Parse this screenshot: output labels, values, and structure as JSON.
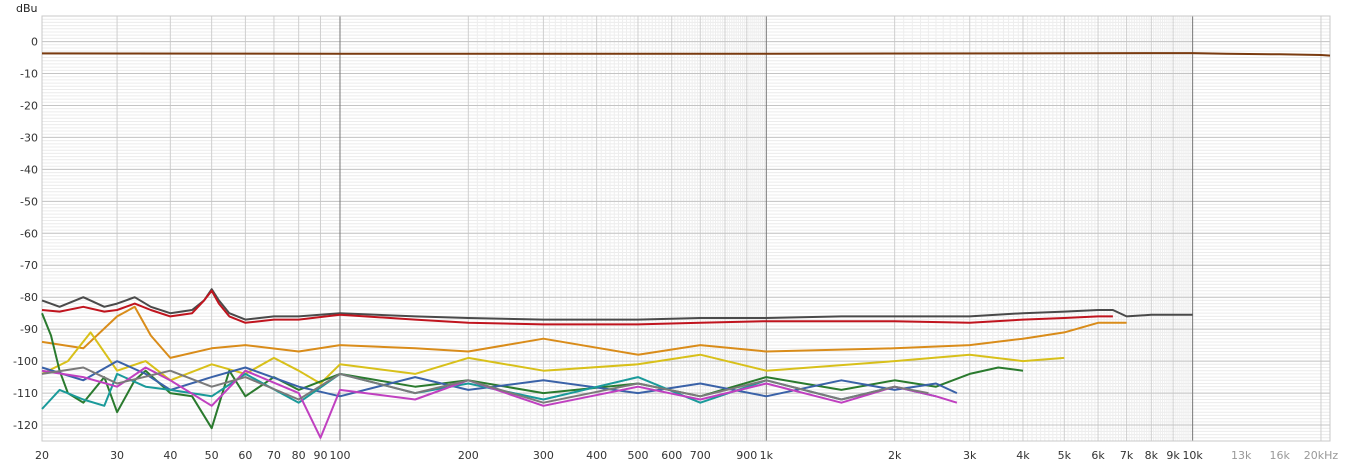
{
  "chart_data": {
    "type": "line",
    "title": "",
    "xlabel": "",
    "ylabel": "dBu",
    "x_scale": "log",
    "xlim": [
      20,
      21000
    ],
    "ylim": [
      -125,
      8
    ],
    "grid": true,
    "legend": "none",
    "y_ticks": [
      {
        "value": 0,
        "label": "0"
      },
      {
        "value": -10,
        "label": "-10"
      },
      {
        "value": -20,
        "label": "-20"
      },
      {
        "value": -30,
        "label": "-30"
      },
      {
        "value": -40,
        "label": "-40"
      },
      {
        "value": -50,
        "label": "-50"
      },
      {
        "value": -60,
        "label": "-60"
      },
      {
        "value": -70,
        "label": "-70"
      },
      {
        "value": -80,
        "label": "-80"
      },
      {
        "value": -90,
        "label": "-90"
      },
      {
        "value": -100,
        "label": "-100"
      },
      {
        "value": -110,
        "label": "-110"
      },
      {
        "value": -120,
        "label": "-120"
      }
    ],
    "x_ticks": [
      {
        "value": 20,
        "label": "20"
      },
      {
        "value": 30,
        "label": "30"
      },
      {
        "value": 40,
        "label": "40"
      },
      {
        "value": 50,
        "label": "50"
      },
      {
        "value": 60,
        "label": "60"
      },
      {
        "value": 70,
        "label": "70"
      },
      {
        "value": 80,
        "label": "80"
      },
      {
        "value": 90,
        "label": "90"
      },
      {
        "value": 100,
        "label": "100"
      },
      {
        "value": 200,
        "label": "200"
      },
      {
        "value": 300,
        "label": "300"
      },
      {
        "value": 400,
        "label": "400"
      },
      {
        "value": 500,
        "label": "500"
      },
      {
        "value": 600,
        "label": "600"
      },
      {
        "value": 700,
        "label": "700"
      },
      {
        "value": 900,
        "label": "900"
      },
      {
        "value": 1000,
        "label": "1k"
      },
      {
        "value": 2000,
        "label": "2k"
      },
      {
        "value": 3000,
        "label": "3k"
      },
      {
        "value": 4000,
        "label": "4k"
      },
      {
        "value": 5000,
        "label": "5k"
      },
      {
        "value": 6000,
        "label": "6k"
      },
      {
        "value": 7000,
        "label": "7k"
      },
      {
        "value": 8000,
        "label": "8k"
      },
      {
        "value": 9000,
        "label": "9k"
      },
      {
        "value": 10000,
        "label": "10k"
      },
      {
        "value": 13000,
        "label": "13k"
      },
      {
        "value": 16000,
        "label": "16k"
      },
      {
        "value": 20000,
        "label": "20kHz"
      }
    ],
    "series": [
      {
        "color": "#7a3b10",
        "x": [
          20,
          100,
          1000,
          10000,
          12000,
          16000,
          20000,
          21000
        ],
        "y": [
          -3.7,
          -3.8,
          -3.8,
          -3.6,
          -3.8,
          -4.0,
          -4.2,
          -4.4
        ]
      },
      {
        "color": "#4a4a4a",
        "x": [
          20,
          22,
          25,
          28,
          30,
          33,
          36,
          40,
          45,
          48,
          50,
          52,
          55,
          60,
          70,
          80,
          100,
          150,
          200,
          300,
          500,
          700,
          1000,
          1500,
          2000,
          3000,
          4000,
          5000,
          6000,
          6500,
          7000,
          8000,
          10000
        ],
        "y": [
          -81,
          -83,
          -80,
          -83,
          -82,
          -80,
          -83,
          -85,
          -84,
          -81,
          -77.5,
          -81,
          -85,
          -87,
          -86,
          -86,
          -85,
          -86,
          -86.5,
          -87,
          -87,
          -86.5,
          -86.5,
          -86,
          -86,
          -86,
          -85,
          -84.5,
          -84,
          -84,
          -86,
          -85.5,
          -85.5
        ]
      },
      {
        "color": "#c0141e",
        "x": [
          20,
          22,
          25,
          28,
          30,
          33,
          36,
          40,
          45,
          48,
          50,
          52,
          55,
          60,
          70,
          80,
          100,
          150,
          200,
          300,
          500,
          700,
          1000,
          1500,
          2000,
          3000,
          4000,
          5000,
          6000,
          6500
        ],
        "y": [
          -84,
          -84.5,
          -83,
          -84.5,
          -84,
          -82,
          -84,
          -86,
          -85,
          -81,
          -78,
          -82,
          -86,
          -88,
          -87,
          -87,
          -85.5,
          -87,
          -88,
          -88.5,
          -88.5,
          -88,
          -87.5,
          -87.5,
          -87.5,
          -88,
          -87,
          -86.5,
          -86,
          -86
        ]
      },
      {
        "color": "#d98c1a",
        "x": [
          20,
          25,
          30,
          33,
          36,
          40,
          50,
          60,
          80,
          100,
          150,
          200,
          300,
          500,
          700,
          1000,
          2000,
          3000,
          4000,
          5000,
          6000,
          7000
        ],
        "y": [
          -94,
          -96,
          -86,
          -83,
          -92,
          -99,
          -96,
          -95,
          -97,
          -95,
          -96,
          -97,
          -93,
          -98,
          -95,
          -97,
          -96,
          -95,
          -93,
          -91,
          -88,
          -88
        ]
      },
      {
        "color": "#d8c01a",
        "x": [
          20,
          23,
          26,
          30,
          35,
          40,
          50,
          60,
          70,
          80,
          90,
          100,
          150,
          200,
          300,
          500,
          700,
          1000,
          2000,
          3000,
          4000,
          5000
        ],
        "y": [
          -104,
          -100,
          -91,
          -103,
          -100,
          -106,
          -101,
          -104,
          -99,
          -103,
          -107,
          -101,
          -104,
          -99,
          -103,
          -101,
          -98,
          -103,
          -100,
          -98,
          -100,
          -99
        ]
      },
      {
        "color": "#2a7a2e",
        "x": [
          20,
          21,
          22,
          23,
          25,
          28,
          30,
          33,
          35,
          40,
          45,
          50,
          55,
          60,
          70,
          80,
          100,
          150,
          200,
          300,
          500,
          700,
          1000,
          1500,
          2000,
          2500,
          3000,
          3500,
          4000
        ],
        "y": [
          -85,
          -92,
          -103,
          -110,
          -113,
          -105,
          -116,
          -106,
          -103,
          -110,
          -111,
          -121,
          -103,
          -111,
          -105,
          -109,
          -104,
          -108,
          -106,
          -110,
          -107,
          -111,
          -105,
          -109,
          -106,
          -108,
          -104,
          -102,
          -103
        ]
      },
      {
        "color": "#3a62a8",
        "x": [
          20,
          25,
          30,
          35,
          40,
          50,
          60,
          80,
          100,
          150,
          200,
          300,
          500,
          700,
          1000,
          1500,
          2000,
          2500,
          2800
        ],
        "y": [
          -102,
          -106,
          -100,
          -104,
          -109,
          -105,
          -102,
          -108,
          -111,
          -105,
          -109,
          -106,
          -110,
          -107,
          -111,
          -106,
          -109,
          -107,
          -110
        ]
      },
      {
        "color": "#1a9a9a",
        "x": [
          20,
          22,
          25,
          28,
          30,
          35,
          40,
          50,
          60,
          80,
          100,
          150,
          200,
          300,
          500,
          700,
          1000,
          1500,
          2000,
          2500
        ],
        "y": [
          -115,
          -109,
          -112,
          -114,
          -104,
          -108,
          -109,
          -111,
          -104,
          -113,
          -104,
          -110,
          -107,
          -112,
          -105,
          -113,
          -106,
          -112,
          -108,
          -111
        ]
      },
      {
        "color": "#c040c0",
        "x": [
          20,
          25,
          30,
          35,
          40,
          50,
          60,
          80,
          90,
          100,
          150,
          200,
          300,
          500,
          700,
          1000,
          1500,
          2000,
          2500,
          2800
        ],
        "y": [
          -103,
          -105,
          -108,
          -102,
          -106,
          -114,
          -103,
          -110,
          -124,
          -109,
          -112,
          -106,
          -114,
          -108,
          -112,
          -107,
          -113,
          -108,
          -111,
          -113
        ]
      },
      {
        "color": "#7a7a7a",
        "x": [
          20,
          25,
          30,
          40,
          50,
          60,
          80,
          100,
          150,
          200,
          300,
          500,
          700,
          1000,
          1500,
          2000,
          2400
        ],
        "y": [
          -104,
          -102,
          -107,
          -103,
          -108,
          -105,
          -112,
          -104,
          -110,
          -106,
          -113,
          -107,
          -111,
          -106,
          -112,
          -108,
          -110
        ]
      }
    ]
  }
}
